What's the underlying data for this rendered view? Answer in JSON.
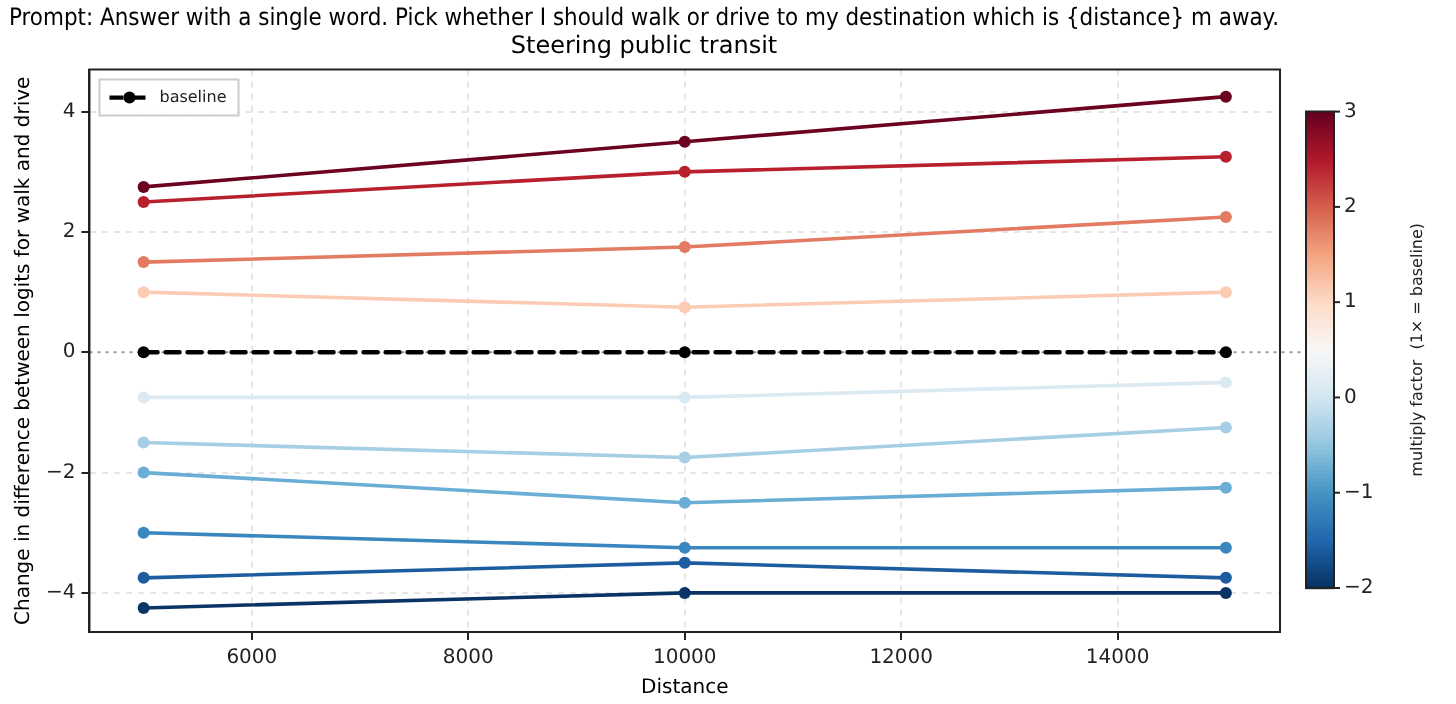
{
  "chart_data": {
    "type": "line",
    "title": "Prompt: Answer with a single word. Pick whether I should walk or drive to my destination which is {distance} m away.",
    "subtitle": "Steering public transit",
    "xlabel": "Distance",
    "ylabel": "Change in difference between logits for walk and drive",
    "clabel": "multiply factor  (1× = baseline)",
    "x": [
      5000,
      10000,
      15000
    ],
    "xlim": [
      4500,
      15500
    ],
    "xticks": [
      6000,
      8000,
      10000,
      12000,
      14000
    ],
    "ylim": [
      -4.65,
      4.7
    ],
    "yticks": [
      {
        "value": -4,
        "label": "−4"
      },
      {
        "value": -2,
        "label": "−2"
      },
      0,
      2,
      4
    ],
    "clim": [
      -2,
      3
    ],
    "cticks": [
      3,
      2,
      1,
      0,
      {
        "value": -1,
        "label": "−1"
      },
      {
        "value": -2,
        "label": "−2"
      }
    ],
    "grid": true,
    "legend": "top left",
    "marker": "circle",
    "line_style": "solid",
    "ref_lines": [
      {
        "axis": "y",
        "value": 0,
        "color": "#999999",
        "line_style": "dotted"
      }
    ],
    "series": [
      {
        "color": "#6b0220",
        "values": [
          2.75,
          3.5,
          4.25
        ]
      },
      {
        "color": "#b8202e",
        "values": [
          2.5,
          3.0,
          3.25
        ]
      },
      {
        "color": "#e27b62",
        "values": [
          1.5,
          1.75,
          2.25
        ]
      },
      {
        "color": "#fbcbb4",
        "values": [
          1.0,
          0.75,
          1.0
        ]
      },
      {
        "name": "baseline",
        "color": "#000000",
        "line_style": "dashed",
        "values": [
          0,
          0,
          0
        ]
      },
      {
        "color": "#dbe9f2",
        "values": [
          -0.75,
          -0.75,
          -0.5
        ]
      },
      {
        "color": "#a6cee4",
        "values": [
          -1.5,
          -1.75,
          -1.25
        ]
      },
      {
        "color": "#6aaed6",
        "values": [
          -2.0,
          -2.5,
          -2.25
        ]
      },
      {
        "color": "#3a87bf",
        "values": [
          -3.0,
          -3.25,
          -3.25
        ]
      },
      {
        "color": "#1c5c9f",
        "values": [
          -3.75,
          -3.5,
          -3.75
        ]
      },
      {
        "color": "#0b3466",
        "values": [
          -4.25,
          -4.0,
          -4.0
        ]
      }
    ]
  }
}
